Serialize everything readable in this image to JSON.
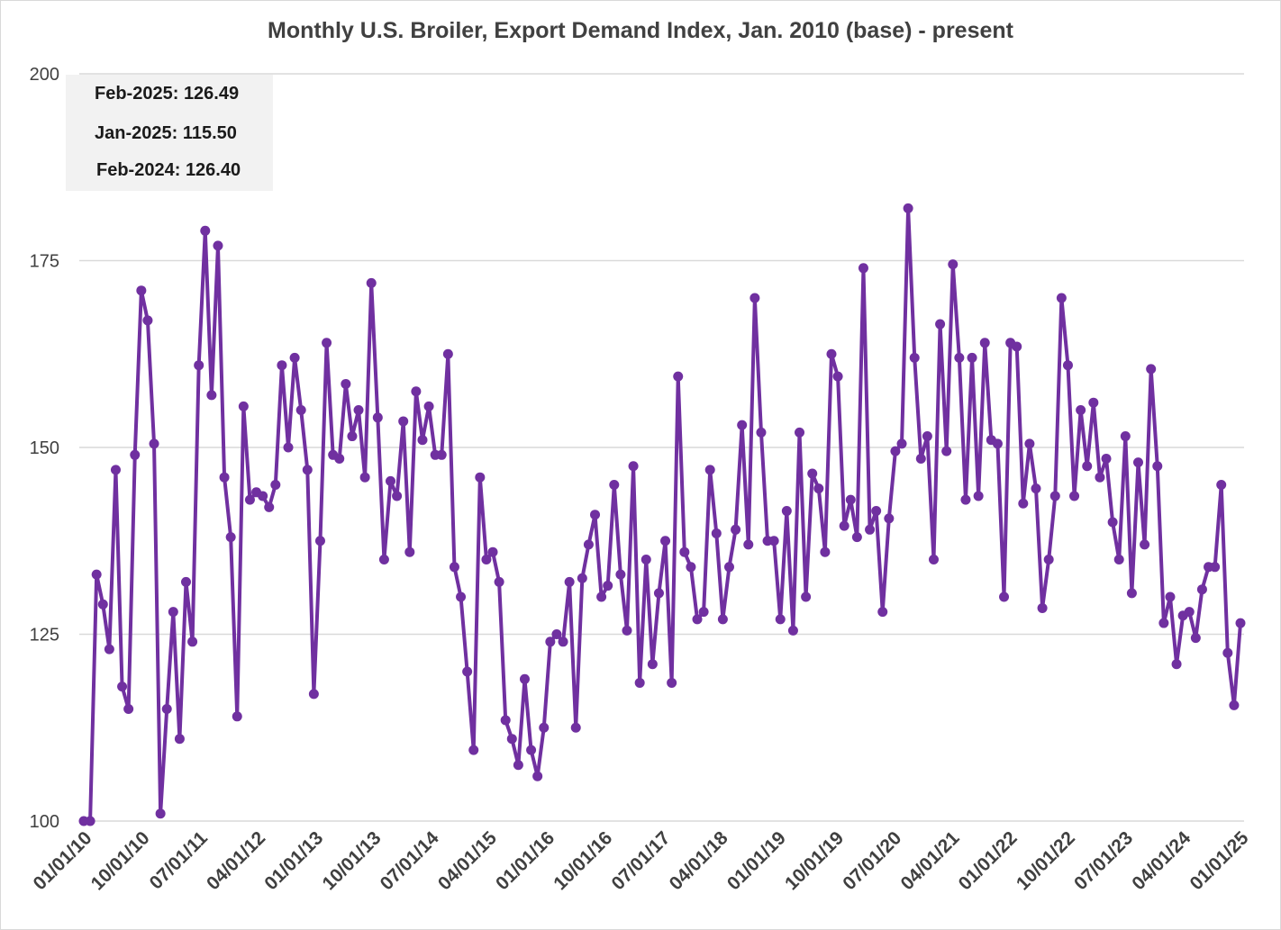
{
  "chart_data": {
    "type": "line",
    "title": "Monthly U.S. Broiler, Export Demand Index, Jan. 2010 (base) - present",
    "xlabel": "",
    "ylabel": "",
    "ylim": [
      100,
      200
    ],
    "yticks": [
      "100",
      "125",
      "150",
      "175",
      "200"
    ],
    "xticks": [
      "01/01/10",
      "10/01/10",
      "07/01/11",
      "04/01/12",
      "01/01/13",
      "10/01/13",
      "07/01/14",
      "04/01/15",
      "01/01/16",
      "10/01/16",
      "07/01/17",
      "04/01/18",
      "01/01/19",
      "10/01/19",
      "07/01/20",
      "04/01/21",
      "01/01/22",
      "10/01/22",
      "07/01/23",
      "04/01/24",
      "01/01/25"
    ],
    "grid": true,
    "line_color": "#7030a0",
    "annotations": [
      {
        "label": "Feb-2025:",
        "value": "126.49"
      },
      {
        "label": "Jan-2025:",
        "value": "115.50"
      },
      {
        "label": "Feb-2024:",
        "value": "126.40"
      }
    ],
    "series": [
      {
        "values": [
          100,
          100,
          133,
          129,
          123,
          147,
          118,
          115,
          149,
          171,
          167,
          150.5,
          101,
          115,
          128,
          111,
          132,
          124,
          161,
          179,
          157,
          177,
          146,
          138,
          114,
          155.5,
          143,
          144,
          143.5,
          142,
          145,
          161,
          150,
          162,
          155,
          147,
          117,
          137.5,
          164,
          149,
          148.5,
          158.5,
          151.5,
          155,
          146,
          172,
          154,
          135,
          145.5,
          143.5,
          153.5,
          136,
          157.5,
          151,
          155.5,
          149,
          149,
          162.5,
          134,
          130,
          120,
          109.5,
          146,
          135,
          136,
          132,
          113.5,
          111,
          107.5,
          119,
          109.5,
          106,
          112.5,
          124,
          125,
          124,
          132,
          112.5,
          132.5,
          137,
          141,
          130,
          131.5,
          145,
          133,
          125.5,
          147.5,
          118.5,
          135,
          121,
          130.5,
          137.5,
          118.5,
          159.5,
          136,
          134,
          127,
          128,
          147,
          138.5,
          127,
          134,
          139,
          153,
          137,
          170,
          152,
          137.5,
          137.5,
          127,
          141.5,
          125.5,
          152,
          130,
          146.5,
          144.5,
          136,
          162.5,
          159.5,
          139.5,
          143,
          138,
          174,
          139,
          141.5,
          128,
          140.5,
          149.5,
          150.5,
          182,
          162,
          148.5,
          151.5,
          135,
          166.5,
          149.5,
          174.5,
          162,
          143,
          162,
          143.5,
          164,
          151,
          150.5,
          130,
          164,
          163.5,
          142.5,
          150.5,
          144.5,
          128.5,
          135,
          143.5,
          170,
          161,
          143.5,
          155,
          147.5,
          156,
          146,
          148.5,
          140,
          135,
          151.5,
          130.5,
          148,
          137,
          160.5,
          147.5,
          126.5,
          130,
          121,
          127.5,
          128,
          124.5,
          131,
          134,
          134,
          145,
          122.5,
          115.5,
          126.49
        ]
      }
    ]
  }
}
